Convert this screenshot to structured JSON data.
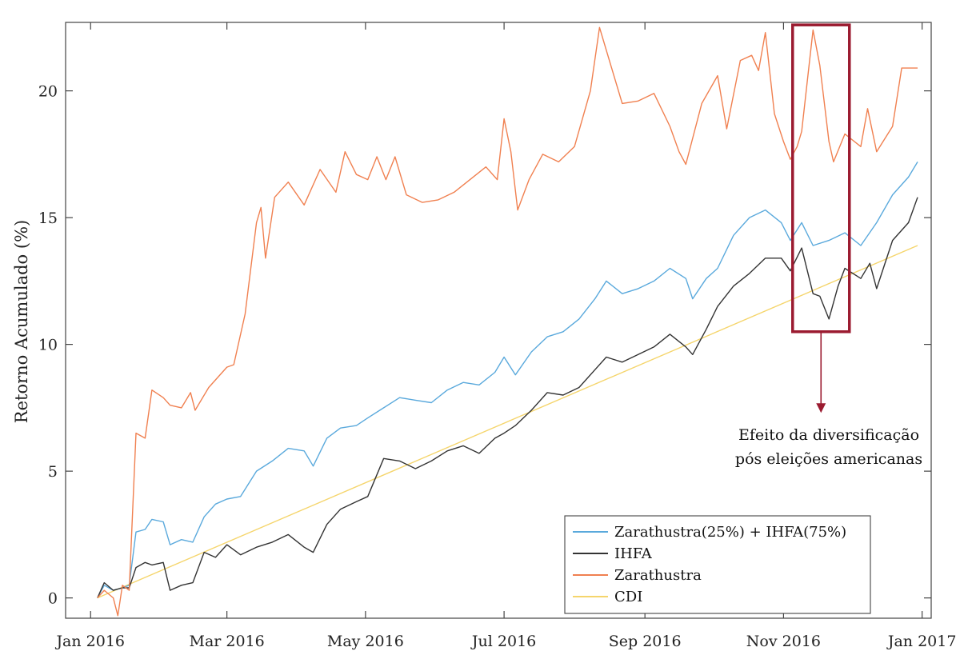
{
  "chart_data": {
    "type": "line",
    "title": "",
    "xlabel": "",
    "ylabel": "Retorno Acumulado (%)",
    "xlim": [
      "2015-12-21",
      "2017-01-05"
    ],
    "ylim": [
      -0.8,
      22.7
    ],
    "grid": false,
    "x_ticks": [
      {
        "date": "2016-01-01",
        "label": "Jan 2016"
      },
      {
        "date": "2016-03-01",
        "label": "Mar 2016"
      },
      {
        "date": "2016-05-01",
        "label": "May 2016"
      },
      {
        "date": "2016-07-01",
        "label": "Jul 2016"
      },
      {
        "date": "2016-09-01",
        "label": "Sep 2016"
      },
      {
        "date": "2016-11-01",
        "label": "Nov 2016"
      },
      {
        "date": "2017-01-01",
        "label": "Jan 2017"
      }
    ],
    "y_ticks": [
      0,
      5,
      10,
      15,
      20
    ],
    "legend_position": "bottom-right",
    "series": [
      {
        "name": "Zarathustra(25%) + IHFA(75%)",
        "color": "#5aa9dc",
        "points": [
          [
            "2016-01-04",
            0
          ],
          [
            "2016-01-07",
            0.5
          ],
          [
            "2016-01-11",
            0.3
          ],
          [
            "2016-01-15",
            0.4
          ],
          [
            "2016-01-18",
            0.5
          ],
          [
            "2016-01-21",
            2.6
          ],
          [
            "2016-01-25",
            2.7
          ],
          [
            "2016-01-28",
            3.1
          ],
          [
            "2016-02-02",
            3.0
          ],
          [
            "2016-02-05",
            2.1
          ],
          [
            "2016-02-10",
            2.3
          ],
          [
            "2016-02-15",
            2.2
          ],
          [
            "2016-02-20",
            3.2
          ],
          [
            "2016-02-25",
            3.7
          ],
          [
            "2016-03-01",
            3.9
          ],
          [
            "2016-03-07",
            4.0
          ],
          [
            "2016-03-14",
            5.0
          ],
          [
            "2016-03-21",
            5.4
          ],
          [
            "2016-03-28",
            5.9
          ],
          [
            "2016-04-04",
            5.8
          ],
          [
            "2016-04-08",
            5.2
          ],
          [
            "2016-04-14",
            6.3
          ],
          [
            "2016-04-20",
            6.7
          ],
          [
            "2016-04-27",
            6.8
          ],
          [
            "2016-05-02",
            7.1
          ],
          [
            "2016-05-09",
            7.5
          ],
          [
            "2016-05-16",
            7.9
          ],
          [
            "2016-05-23",
            7.8
          ],
          [
            "2016-05-30",
            7.7
          ],
          [
            "2016-06-06",
            8.2
          ],
          [
            "2016-06-13",
            8.5
          ],
          [
            "2016-06-20",
            8.4
          ],
          [
            "2016-06-27",
            8.9
          ],
          [
            "2016-07-01",
            9.5
          ],
          [
            "2016-07-06",
            8.8
          ],
          [
            "2016-07-13",
            9.7
          ],
          [
            "2016-07-20",
            10.3
          ],
          [
            "2016-07-27",
            10.5
          ],
          [
            "2016-08-03",
            11.0
          ],
          [
            "2016-08-10",
            11.8
          ],
          [
            "2016-08-15",
            12.5
          ],
          [
            "2016-08-22",
            12.0
          ],
          [
            "2016-08-29",
            12.2
          ],
          [
            "2016-09-05",
            12.5
          ],
          [
            "2016-09-12",
            13.0
          ],
          [
            "2016-09-19",
            12.6
          ],
          [
            "2016-09-22",
            11.8
          ],
          [
            "2016-09-28",
            12.6
          ],
          [
            "2016-10-03",
            13.0
          ],
          [
            "2016-10-10",
            14.3
          ],
          [
            "2016-10-17",
            15.0
          ],
          [
            "2016-10-24",
            15.3
          ],
          [
            "2016-10-31",
            14.8
          ],
          [
            "2016-11-04",
            14.1
          ],
          [
            "2016-11-09",
            14.8
          ],
          [
            "2016-11-14",
            13.9
          ],
          [
            "2016-11-21",
            14.1
          ],
          [
            "2016-11-28",
            14.4
          ],
          [
            "2016-12-05",
            13.9
          ],
          [
            "2016-12-12",
            14.8
          ],
          [
            "2016-12-19",
            15.9
          ],
          [
            "2016-12-26",
            16.6
          ],
          [
            "2016-12-30",
            17.2
          ]
        ]
      },
      {
        "name": "IHFA",
        "color": "#333333",
        "points": [
          [
            "2016-01-04",
            0
          ],
          [
            "2016-01-07",
            0.6
          ],
          [
            "2016-01-11",
            0.3
          ],
          [
            "2016-01-15",
            0.4
          ],
          [
            "2016-01-18",
            0.4
          ],
          [
            "2016-01-21",
            1.2
          ],
          [
            "2016-01-25",
            1.4
          ],
          [
            "2016-01-28",
            1.3
          ],
          [
            "2016-02-02",
            1.4
          ],
          [
            "2016-02-05",
            0.3
          ],
          [
            "2016-02-10",
            0.5
          ],
          [
            "2016-02-15",
            0.6
          ],
          [
            "2016-02-20",
            1.8
          ],
          [
            "2016-02-25",
            1.6
          ],
          [
            "2016-03-01",
            2.1
          ],
          [
            "2016-03-07",
            1.7
          ],
          [
            "2016-03-14",
            2.0
          ],
          [
            "2016-03-21",
            2.2
          ],
          [
            "2016-03-28",
            2.5
          ],
          [
            "2016-04-04",
            2.0
          ],
          [
            "2016-04-08",
            1.8
          ],
          [
            "2016-04-14",
            2.9
          ],
          [
            "2016-04-20",
            3.5
          ],
          [
            "2016-04-27",
            3.8
          ],
          [
            "2016-05-02",
            4.0
          ],
          [
            "2016-05-09",
            5.5
          ],
          [
            "2016-05-16",
            5.4
          ],
          [
            "2016-05-23",
            5.1
          ],
          [
            "2016-05-30",
            5.4
          ],
          [
            "2016-06-06",
            5.8
          ],
          [
            "2016-06-13",
            6.0
          ],
          [
            "2016-06-20",
            5.7
          ],
          [
            "2016-06-27",
            6.3
          ],
          [
            "2016-07-01",
            6.5
          ],
          [
            "2016-07-06",
            6.8
          ],
          [
            "2016-07-13",
            7.4
          ],
          [
            "2016-07-20",
            8.1
          ],
          [
            "2016-07-27",
            8.0
          ],
          [
            "2016-08-03",
            8.3
          ],
          [
            "2016-08-10",
            9.0
          ],
          [
            "2016-08-15",
            9.5
          ],
          [
            "2016-08-22",
            9.3
          ],
          [
            "2016-08-29",
            9.6
          ],
          [
            "2016-09-05",
            9.9
          ],
          [
            "2016-09-12",
            10.4
          ],
          [
            "2016-09-19",
            9.9
          ],
          [
            "2016-09-22",
            9.6
          ],
          [
            "2016-09-28",
            10.6
          ],
          [
            "2016-10-03",
            11.5
          ],
          [
            "2016-10-10",
            12.3
          ],
          [
            "2016-10-17",
            12.8
          ],
          [
            "2016-10-24",
            13.4
          ],
          [
            "2016-10-31",
            13.4
          ],
          [
            "2016-11-04",
            12.9
          ],
          [
            "2016-11-09",
            13.8
          ],
          [
            "2016-11-14",
            12.0
          ],
          [
            "2016-11-17",
            11.9
          ],
          [
            "2016-11-21",
            11.0
          ],
          [
            "2016-11-25",
            12.3
          ],
          [
            "2016-11-28",
            13.0
          ],
          [
            "2016-12-05",
            12.6
          ],
          [
            "2016-12-09",
            13.2
          ],
          [
            "2016-12-12",
            12.2
          ],
          [
            "2016-12-19",
            14.1
          ],
          [
            "2016-12-26",
            14.8
          ],
          [
            "2016-12-30",
            15.8
          ]
        ]
      },
      {
        "name": "Zarathustra",
        "color": "#f08050",
        "points": [
          [
            "2016-01-04",
            0
          ],
          [
            "2016-01-07",
            0.3
          ],
          [
            "2016-01-11",
            0.0
          ],
          [
            "2016-01-13",
            -0.7
          ],
          [
            "2016-01-15",
            0.5
          ],
          [
            "2016-01-18",
            0.3
          ],
          [
            "2016-01-21",
            6.5
          ],
          [
            "2016-01-25",
            6.3
          ],
          [
            "2016-01-28",
            8.2
          ],
          [
            "2016-02-02",
            7.9
          ],
          [
            "2016-02-05",
            7.6
          ],
          [
            "2016-02-10",
            7.5
          ],
          [
            "2016-02-14",
            8.1
          ],
          [
            "2016-02-16",
            7.4
          ],
          [
            "2016-02-22",
            8.3
          ],
          [
            "2016-03-01",
            9.1
          ],
          [
            "2016-03-04",
            9.2
          ],
          [
            "2016-03-09",
            11.2
          ],
          [
            "2016-03-14",
            14.8
          ],
          [
            "2016-03-16",
            15.4
          ],
          [
            "2016-03-18",
            13.4
          ],
          [
            "2016-03-22",
            15.8
          ],
          [
            "2016-03-28",
            16.4
          ],
          [
            "2016-04-04",
            15.5
          ],
          [
            "2016-04-11",
            16.9
          ],
          [
            "2016-04-18",
            16.0
          ],
          [
            "2016-04-22",
            17.6
          ],
          [
            "2016-04-27",
            16.7
          ],
          [
            "2016-05-02",
            16.5
          ],
          [
            "2016-05-06",
            17.4
          ],
          [
            "2016-05-10",
            16.5
          ],
          [
            "2016-05-14",
            17.4
          ],
          [
            "2016-05-19",
            15.9
          ],
          [
            "2016-05-26",
            15.6
          ],
          [
            "2016-06-02",
            15.7
          ],
          [
            "2016-06-09",
            16.0
          ],
          [
            "2016-06-16",
            16.5
          ],
          [
            "2016-06-23",
            17.0
          ],
          [
            "2016-06-28",
            16.5
          ],
          [
            "2016-07-01",
            18.9
          ],
          [
            "2016-07-04",
            17.6
          ],
          [
            "2016-07-07",
            15.3
          ],
          [
            "2016-07-12",
            16.5
          ],
          [
            "2016-07-18",
            17.5
          ],
          [
            "2016-07-25",
            17.2
          ],
          [
            "2016-08-01",
            17.8
          ],
          [
            "2016-08-08",
            20.0
          ],
          [
            "2016-08-12",
            22.5
          ],
          [
            "2016-08-17",
            21.0
          ],
          [
            "2016-08-22",
            19.5
          ],
          [
            "2016-08-29",
            19.6
          ],
          [
            "2016-09-05",
            19.9
          ],
          [
            "2016-09-12",
            18.6
          ],
          [
            "2016-09-16",
            17.6
          ],
          [
            "2016-09-19",
            17.1
          ],
          [
            "2016-09-26",
            19.5
          ],
          [
            "2016-10-03",
            20.6
          ],
          [
            "2016-10-07",
            18.5
          ],
          [
            "2016-10-13",
            21.2
          ],
          [
            "2016-10-18",
            21.4
          ],
          [
            "2016-10-21",
            20.8
          ],
          [
            "2016-10-24",
            22.3
          ],
          [
            "2016-10-28",
            19.1
          ],
          [
            "2016-11-01",
            18.0
          ],
          [
            "2016-11-04",
            17.3
          ],
          [
            "2016-11-07",
            17.8
          ],
          [
            "2016-11-09",
            18.4
          ],
          [
            "2016-11-12",
            20.8
          ],
          [
            "2016-11-14",
            22.4
          ],
          [
            "2016-11-17",
            21.0
          ],
          [
            "2016-11-21",
            18.0
          ],
          [
            "2016-11-23",
            17.2
          ],
          [
            "2016-11-28",
            18.3
          ],
          [
            "2016-12-05",
            17.8
          ],
          [
            "2016-12-08",
            19.3
          ],
          [
            "2016-12-12",
            17.6
          ],
          [
            "2016-12-19",
            18.6
          ],
          [
            "2016-12-23",
            20.9
          ],
          [
            "2016-12-30",
            20.9
          ]
        ]
      },
      {
        "name": "CDI",
        "color": "#f5d56c",
        "points": [
          [
            "2016-01-04",
            0
          ],
          [
            "2016-12-30",
            13.9
          ]
        ]
      }
    ],
    "annotation": {
      "box_x": [
        "2016-11-05",
        "2016-11-30"
      ],
      "box_y": [
        10.5,
        22.6
      ],
      "arrow_to_y": 7.3,
      "text_lines": [
        "Efeito da diversificação",
        "pós eleições americanas"
      ],
      "color": "#9b1b30"
    }
  }
}
